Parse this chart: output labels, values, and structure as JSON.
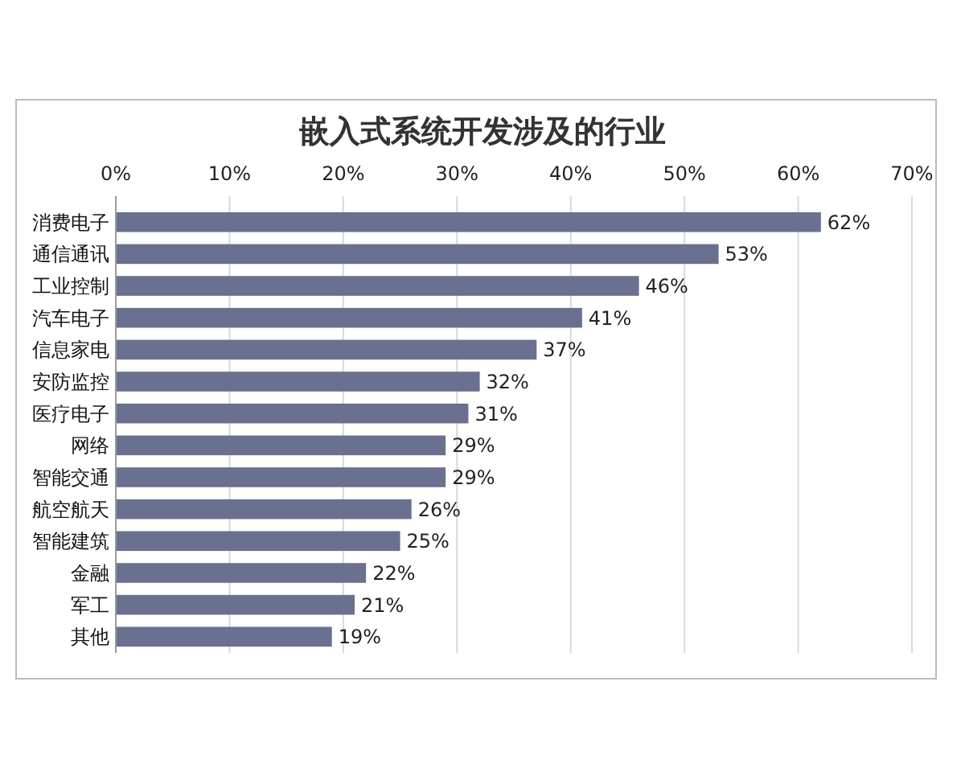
{
  "chart_data": {
    "type": "bar",
    "orientation": "horizontal",
    "title": "嵌入式系统开发涉及的行业",
    "categories": [
      "消费电子",
      "通信通讯",
      "工业控制",
      "汽车电子",
      "信息家电",
      "安防监控",
      "医疗电子",
      "网络",
      "智能交通",
      "航空航天",
      "智能建筑",
      "金融",
      "军工",
      "其他"
    ],
    "values": [
      62,
      53,
      46,
      41,
      37,
      32,
      31,
      29,
      29,
      26,
      25,
      22,
      21,
      19
    ],
    "value_labels": [
      "62%",
      "53%",
      "46%",
      "41%",
      "37%",
      "32%",
      "31%",
      "29%",
      "29%",
      "26%",
      "25%",
      "22%",
      "21%",
      "19%"
    ],
    "color": "#6a7090",
    "xlim": [
      0,
      70
    ],
    "xticks": [
      {
        "value": 0,
        "label": "0%"
      },
      {
        "value": 10,
        "label": "10%"
      },
      {
        "value": 20,
        "label": "20%"
      },
      {
        "value": 30,
        "label": "30%"
      },
      {
        "value": 40,
        "label": "40%"
      },
      {
        "value": 50,
        "label": "50%"
      },
      {
        "value": 60,
        "label": "60%"
      },
      {
        "value": 70,
        "label": "70%"
      }
    ],
    "grid": "x"
  }
}
